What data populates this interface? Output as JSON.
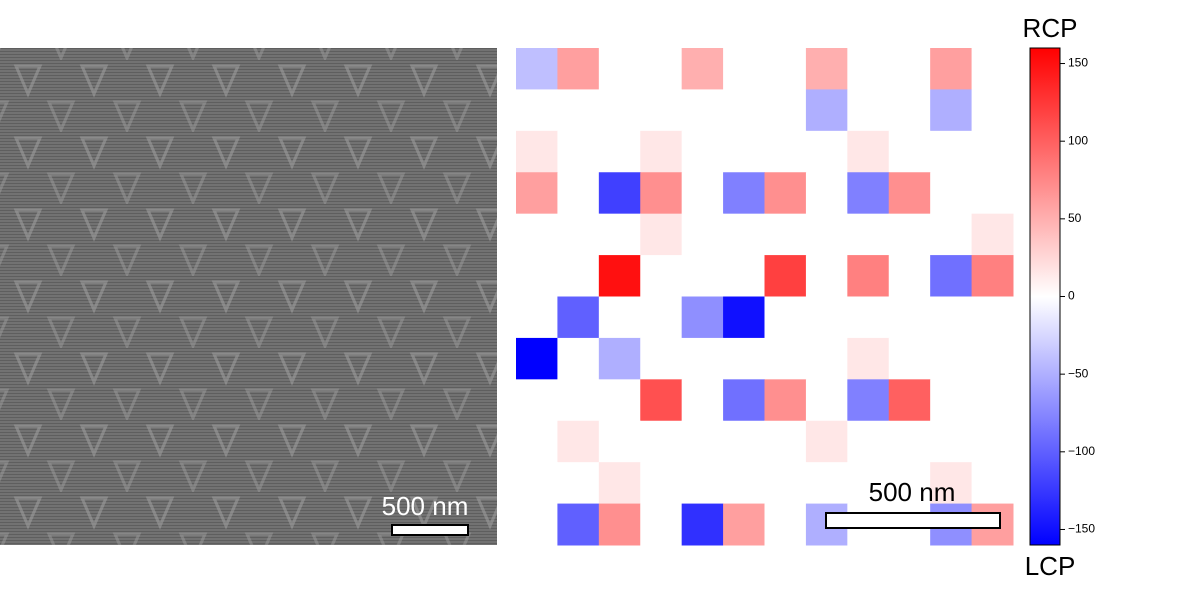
{
  "left_panel": {
    "scale_bar": "500 nm"
  },
  "right_panel": {
    "scale_bar": "500 nm",
    "heatmap": {
      "values": [
        [
          -40,
          60,
          0,
          0,
          50,
          0,
          0,
          50,
          0,
          0,
          60,
          0
        ],
        [
          0,
          0,
          0,
          0,
          0,
          0,
          0,
          -50,
          0,
          0,
          -50,
          0
        ],
        [
          15,
          0,
          0,
          15,
          0,
          0,
          0,
          0,
          15,
          0,
          0,
          0
        ],
        [
          60,
          0,
          -120,
          70,
          0,
          -80,
          70,
          0,
          -80,
          70,
          0,
          0
        ],
        [
          0,
          0,
          0,
          15,
          0,
          0,
          0,
          0,
          0,
          0,
          0,
          15
        ],
        [
          0,
          0,
          150,
          0,
          0,
          0,
          120,
          0,
          80,
          0,
          -90,
          80
        ],
        [
          0,
          -100,
          0,
          0,
          -70,
          -150,
          0,
          0,
          0,
          0,
          0,
          0
        ],
        [
          -160,
          0,
          -50,
          0,
          0,
          0,
          0,
          0,
          15,
          0,
          0,
          0
        ],
        [
          0,
          0,
          0,
          110,
          0,
          -90,
          70,
          0,
          -80,
          100,
          0,
          0
        ],
        [
          0,
          15,
          0,
          0,
          0,
          0,
          0,
          15,
          0,
          0,
          0,
          0
        ],
        [
          0,
          0,
          15,
          0,
          0,
          0,
          0,
          0,
          0,
          0,
          15,
          0
        ],
        [
          0,
          -100,
          70,
          0,
          -130,
          60,
          0,
          -50,
          0,
          0,
          -70,
          60
        ]
      ]
    },
    "colorbar": {
      "top_label": "RCP",
      "bottom_label": "LCP",
      "lim": [
        -160,
        160
      ],
      "ticks": [
        150,
        100,
        50,
        0,
        {
          "value": -50,
          "label": "−50"
        },
        {
          "value": -100,
          "label": "−100"
        },
        {
          "value": -150,
          "label": "−150"
        }
      ]
    }
  }
}
